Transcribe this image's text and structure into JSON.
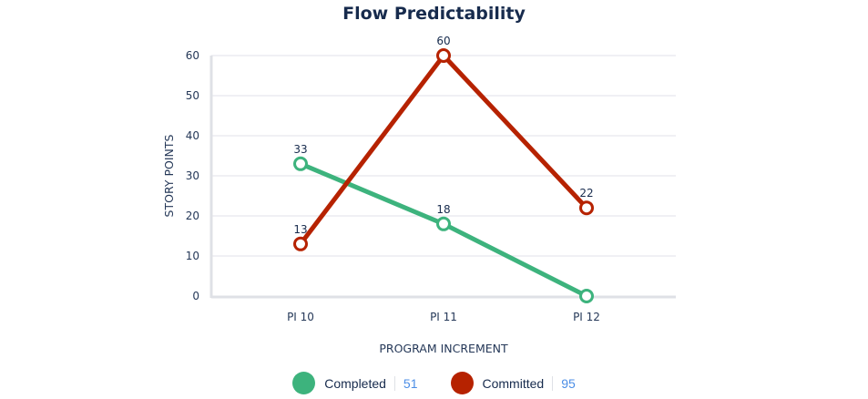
{
  "chart_data": {
    "type": "line",
    "title": "Flow Predictability",
    "xlabel": "PROGRAM INCREMENT",
    "ylabel": "STORY POINTS",
    "categories": [
      "PI 10",
      "PI 11",
      "PI 12"
    ],
    "ylim": [
      0,
      60
    ],
    "yticks": [
      0,
      10,
      20,
      30,
      40,
      50,
      60
    ],
    "grid": true,
    "legend_placement": "bottom",
    "series": [
      {
        "name": "Completed",
        "values": [
          33,
          18,
          0
        ],
        "color": "#3db37d",
        "total": "51",
        "labels": [
          "33",
          "18",
          ""
        ]
      },
      {
        "name": "Committed",
        "values": [
          13,
          60,
          22
        ],
        "color": "#b62200",
        "total": "95",
        "labels": [
          "13",
          "60",
          "22"
        ]
      }
    ]
  }
}
